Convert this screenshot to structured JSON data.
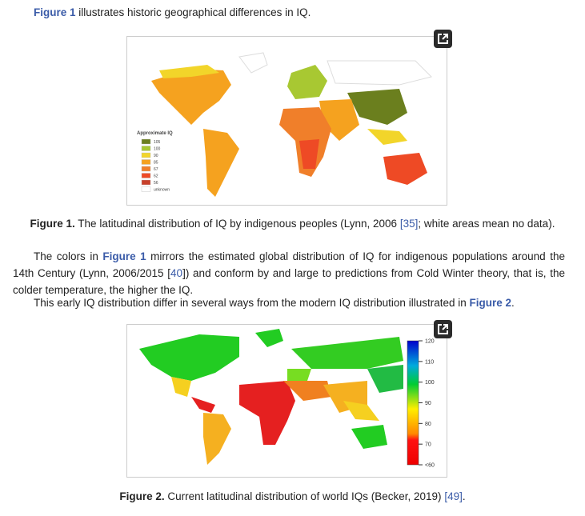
{
  "intro": {
    "link": "Figure 1",
    "text": " illustrates historic geographical differences in IQ."
  },
  "figure1": {
    "legend_title": "Approximate IQ",
    "legend": [
      {
        "label": "105",
        "color": "#6b7f1e"
      },
      {
        "label": "100",
        "color": "#a8c832"
      },
      {
        "label": "90",
        "color": "#f2d52a"
      },
      {
        "label": "85",
        "color": "#f5a21f"
      },
      {
        "label": "67",
        "color": "#f07f2a"
      },
      {
        "label": "62",
        "color": "#ee4a25"
      },
      {
        "label": "56",
        "color": "#c8402a"
      },
      {
        "label": "unknown",
        "color": "#ffffff"
      }
    ],
    "caption_label": "Figure 1.",
    "caption_text": " The latitudinal distribution of IQ by indigenous peoples (Lynn, 2006 ",
    "caption_ref": "[35]",
    "caption_tail": "; white areas mean no data)."
  },
  "para1": {
    "a": "The colors in ",
    "link": "Figure 1",
    "b": " mirrors the estimated global distribution of IQ for indigenous populations around the 14th Century (Lynn, 2006/2015 [",
    "ref": "40",
    "c": "]) and conform by and large to predictions from Cold Winter theory, that is, the colder temperature, the higher the IQ."
  },
  "para2": {
    "a": "This early IQ distribution differ in several ways from the modern IQ distribution illustrated in ",
    "link": "Figure 2",
    "b": "."
  },
  "figure2": {
    "colorbar_ticks": [
      "120",
      "110",
      "100",
      "90",
      "80",
      "70",
      "<60"
    ],
    "caption_label": "Figure 2.",
    "caption_text": " Current latitudinal distribution of world IQs (Becker, 2019) ",
    "caption_ref": "[49]",
    "caption_tail": "."
  }
}
